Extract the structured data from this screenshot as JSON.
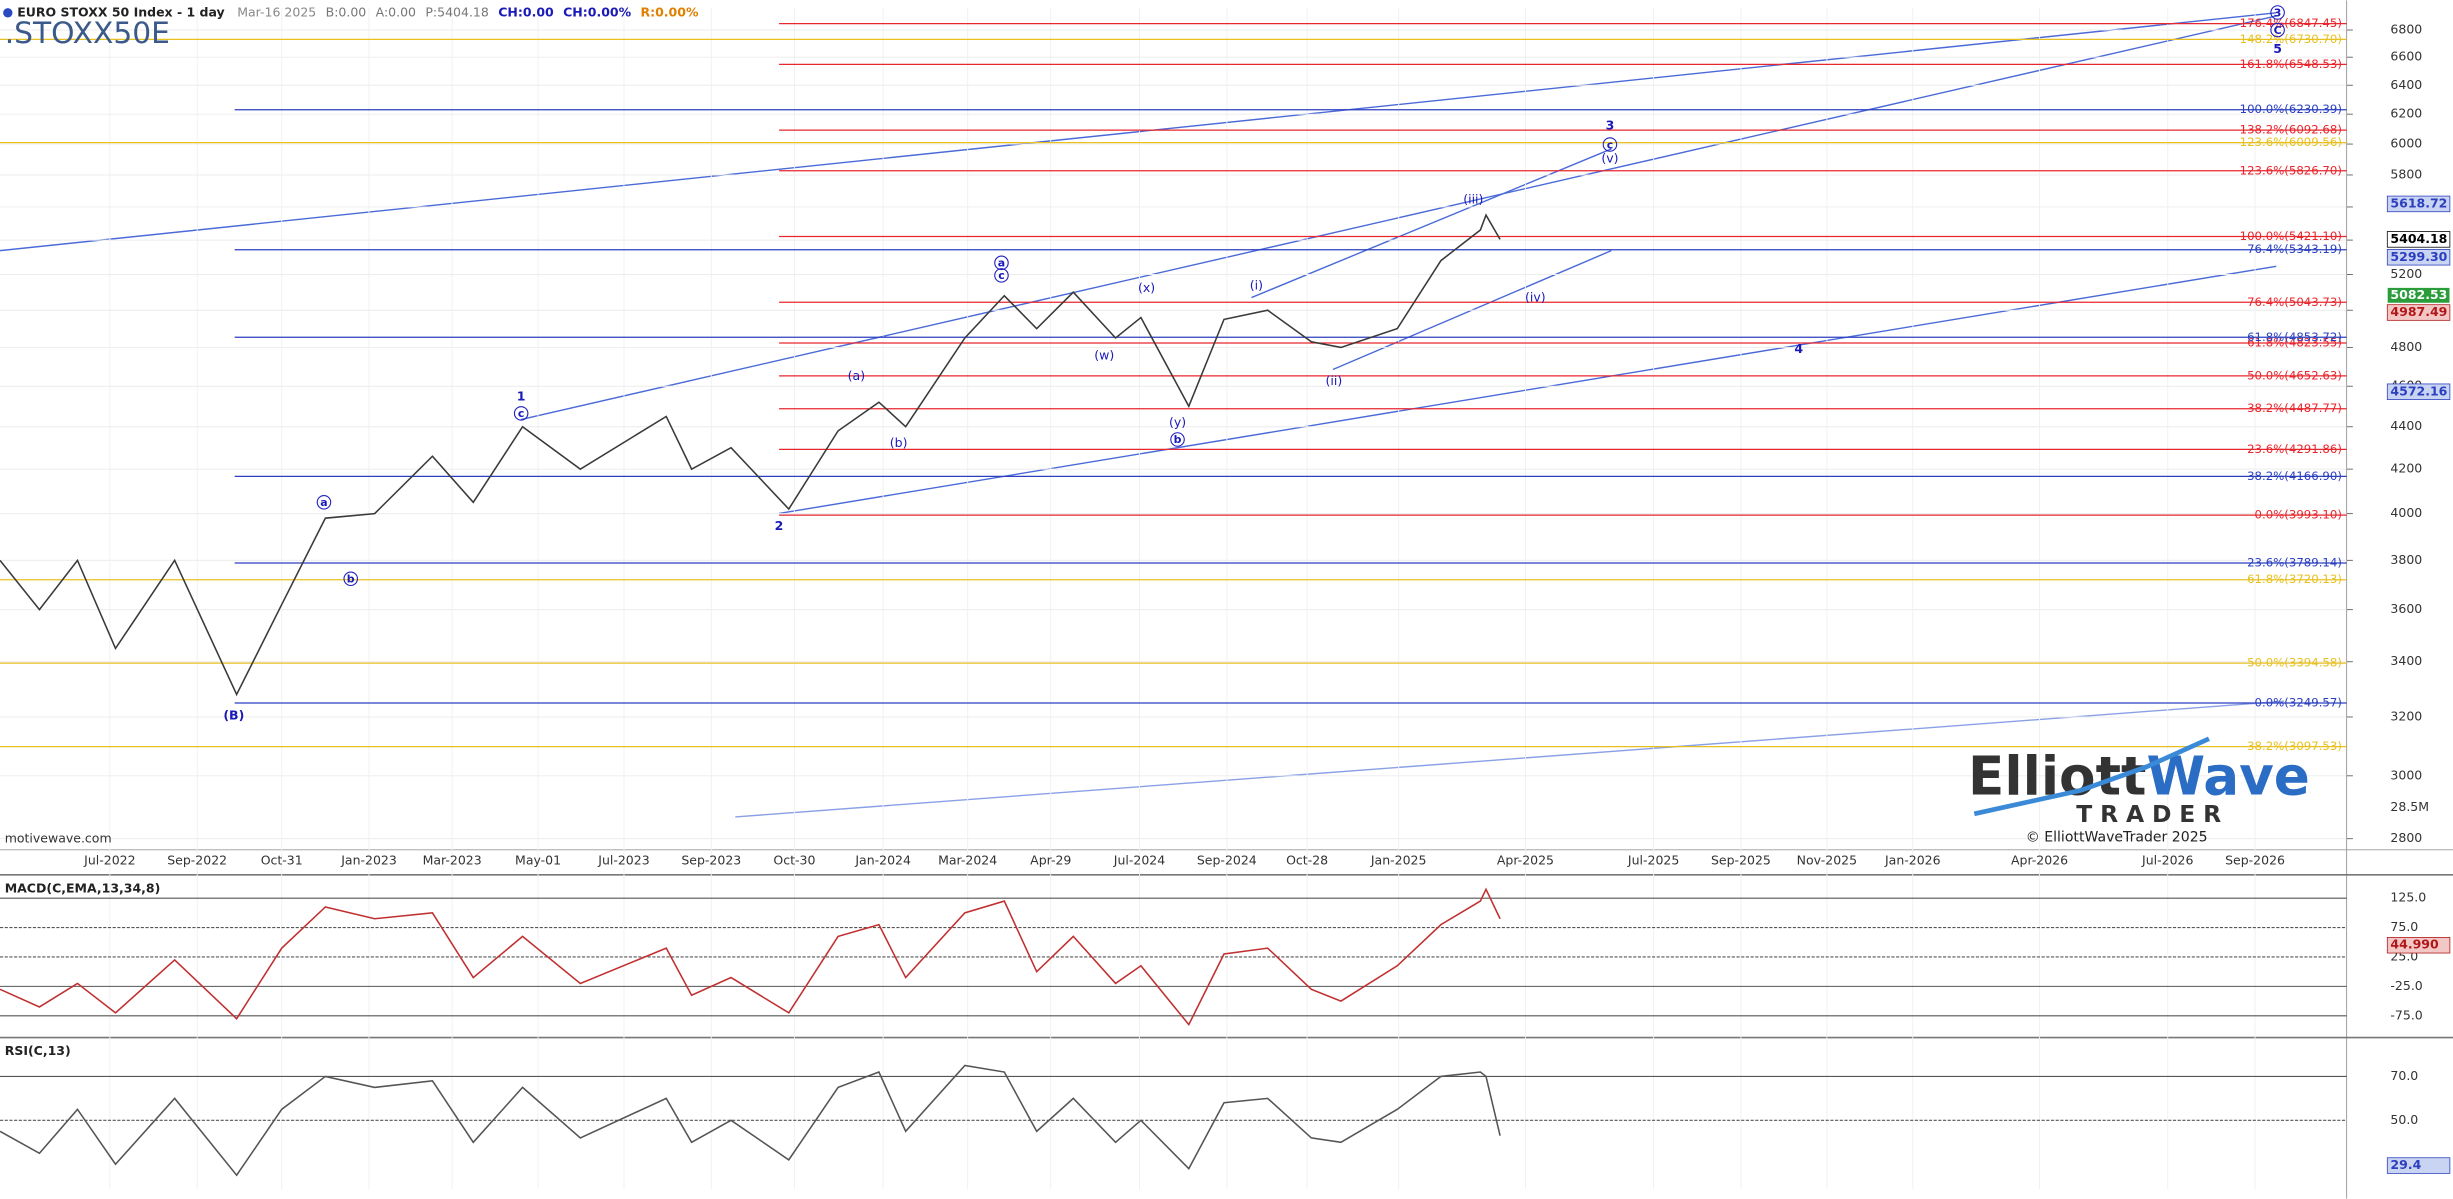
{
  "chart_data": [
    {
      "type": "line",
      "title": "EURO STOXX 50 Index - 1 day",
      "symbol": ".STOXX50E",
      "header_items": [
        "Mar-16 2025",
        "B:0.00",
        "A:0.00",
        "P:5404.18",
        "CH:0.00",
        "CH:0.00%",
        "R:0.00%"
      ],
      "log_scale": true,
      "grid": true,
      "xlim": [
        "2022-04-14",
        "2026-11-05"
      ],
      "xticks": [
        {
          "value": "2022-07-01",
          "label": "Jul-2022"
        },
        {
          "value": "2022-09-01",
          "label": "Sep-2022"
        },
        {
          "value": "2022-10-31",
          "label": "Oct-31"
        },
        {
          "value": "2023-01-01",
          "label": "Jan-2023"
        },
        {
          "value": "2023-03-01",
          "label": "Mar-2023"
        },
        {
          "value": "2023-05-01",
          "label": "May-01"
        },
        {
          "value": "2023-07-01",
          "label": "Jul-2023"
        },
        {
          "value": "2023-09-01",
          "label": "Sep-2023"
        },
        {
          "value": "2023-10-30",
          "label": "Oct-30"
        },
        {
          "value": "2024-01-01",
          "label": "Jan-2024"
        },
        {
          "value": "2024-03-01",
          "label": "Mar-2024"
        },
        {
          "value": "2024-04-29",
          "label": "Apr-29"
        },
        {
          "value": "2024-07-01",
          "label": "Jul-2024"
        },
        {
          "value": "2024-09-01",
          "label": "Sep-2024"
        },
        {
          "value": "2024-10-28",
          "label": "Oct-28"
        },
        {
          "value": "2025-01-01",
          "label": "Jan-2025"
        },
        {
          "value": "2025-04-01",
          "label": "Apr-2025"
        },
        {
          "value": "2025-07-01",
          "label": "Jul-2025"
        },
        {
          "value": "2025-09-01",
          "label": "Sep-2025"
        },
        {
          "value": "2025-11-01",
          "label": "Nov-2025"
        },
        {
          "value": "2026-01-01",
          "label": "Jan-2026"
        },
        {
          "value": "2026-04-01",
          "label": "Apr-2026"
        },
        {
          "value": "2026-07-01",
          "label": "Jul-2026"
        },
        {
          "value": "2026-09-01",
          "label": "Sep-2026"
        }
      ],
      "ylim": [
        2766,
        6965
      ],
      "yticks": [
        2800,
        3000,
        3200,
        3400,
        3600,
        3800,
        4000,
        4200,
        4400,
        4600,
        4800,
        5000,
        5200,
        5400,
        5600,
        5800,
        6000,
        6200,
        6400,
        6600,
        6800
      ],
      "x": [
        "2022-04-14",
        "2022-05-12",
        "2022-06-08",
        "2022-07-05",
        "2022-08-16",
        "2022-09-29",
        "2022-10-31",
        "2022-12-01",
        "2023-01-05",
        "2023-02-15",
        "2023-03-16",
        "2023-04-20",
        "2023-05-31",
        "2023-07-31",
        "2023-08-18",
        "2023-09-15",
        "2023-10-26",
        "2023-11-30",
        "2023-12-29",
        "2024-01-17",
        "2024-02-28",
        "2024-03-27",
        "2024-04-19",
        "2024-05-15",
        "2024-06-14",
        "2024-07-02",
        "2024-08-05",
        "2024-08-30",
        "2024-09-30",
        "2024-10-31",
        "2024-11-21",
        "2024-12-31",
        "2025-01-31",
        "2025-02-28",
        "2025-03-04",
        "2025-03-14"
      ],
      "series": [
        {
          "color": "#3a3a3a",
          "values": [
            3800,
            3600,
            3800,
            3450,
            3800,
            3280,
            3620,
            3980,
            4000,
            4260,
            4050,
            4400,
            4200,
            4450,
            4200,
            4300,
            4020,
            4380,
            4520,
            4400,
            4850,
            5080,
            4900,
            5100,
            4850,
            4960,
            4500,
            4950,
            5000,
            4830,
            4800,
            4900,
            5280,
            5460,
            5550,
            5404
          ]
        }
      ],
      "fib_sets": [
        {
          "color": "#e8262d",
          "levels": [
            {
              "label": "176.4%(6847.45)",
              "value": 6847.45
            },
            {
              "label": "161.8%(6548.53)",
              "value": 6548.53
            },
            {
              "label": "138.2%(6092.68)",
              "value": 6092.68
            },
            {
              "label": "123.6%(5826.70)",
              "value": 5826.7
            },
            {
              "label": "100.0%(5421.10)",
              "value": 5421.1
            },
            {
              "label": "76.4%(5043.73)",
              "value": 5043.73
            },
            {
              "label": "61.8%(4823.55)",
              "value": 4823.55
            },
            {
              "label": "50.0%(4652.63)",
              "value": 4652.63
            },
            {
              "label": "38.2%(4487.77)",
              "value": 4487.77
            },
            {
              "label": "23.6%(4291.86)",
              "value": 4291.86
            },
            {
              "label": "0.0%(3993.10)",
              "value": 3993.1
            }
          ]
        },
        {
          "color": "#2b3fbf",
          "levels": [
            {
              "label": "100.0%(6230.39)",
              "value": 6230.39
            },
            {
              "label": "76.4%(5343.19)",
              "value": 5343.19
            },
            {
              "label": "61.8%(4853.72)",
              "value": 4853.72
            },
            {
              "label": "38.2%(4166.90)",
              "value": 4166.9
            },
            {
              "label": "23.6%(3789.14)",
              "value": 3789.14
            },
            {
              "label": "0.0%(3249.57)",
              "value": 3249.57
            }
          ]
        },
        {
          "color": "#e8c020",
          "levels": [
            {
              "label": "148.2%(6730.70)",
              "value": 6730.7
            },
            {
              "label": "123.6%(6009.56)",
              "value": 6009.56
            },
            {
              "label": "61.8%(3720.13)",
              "value": 3720.13
            },
            {
              "label": "50.0%(3394.58)",
              "value": 3394.58
            },
            {
              "label": "38.2%(3097.53)",
              "value": 3097.53
            }
          ]
        }
      ],
      "price_markers": [
        {
          "value": 5618.72,
          "label": "5618.72",
          "color": "#2b3fbf",
          "background": "#c9d3f2"
        },
        {
          "value": 5404.18,
          "label": "5404.18",
          "color": "#000000",
          "background": "#ffffff"
        },
        {
          "value": 5299.3,
          "label": "5299.30",
          "color": "#2b3fbf",
          "background": "#c9d3f2"
        },
        {
          "value": 5082.53,
          "label": "5082.53",
          "color": "#ffffff",
          "background": "#2a9d3a"
        },
        {
          "value": 4987.49,
          "label": "4987.49",
          "color": "#b01818",
          "background": "#f4c7c7"
        },
        {
          "value": 4572.16,
          "label": "4572.16",
          "color": "#2b3fbf",
          "background": "#c9d3f2"
        }
      ],
      "wave_labels": [
        {
          "text": "(B)",
          "x": "2022-09-27",
          "y": 3207,
          "circled": false
        },
        {
          "text": "a",
          "x": "2022-11-30",
          "y": 4050,
          "circled": true
        },
        {
          "text": "b",
          "x": "2022-12-19",
          "y": 3724,
          "circled": true
        },
        {
          "text": "1",
          "x": "2023-04-19",
          "y": 4551,
          "circled": false
        },
        {
          "text": "c",
          "x": "2023-04-19",
          "y": 4465,
          "circled": true
        },
        {
          "text": "2",
          "x": "2023-10-19",
          "y": 3947,
          "circled": false
        },
        {
          "text": "(a)",
          "x": "2023-12-13",
          "y": 4654,
          "circled": false
        },
        {
          "text": "(b)",
          "x": "2024-01-12",
          "y": 4323,
          "circled": false
        },
        {
          "text": "a",
          "x": "2024-03-25",
          "y": 5267,
          "circled": true
        },
        {
          "text": "c",
          "x": "2024-03-25",
          "y": 5195,
          "circled": true
        },
        {
          "text": "(w)",
          "x": "2024-06-06",
          "y": 4759,
          "circled": false
        },
        {
          "text": "(x)",
          "x": "2024-07-06",
          "y": 5124,
          "circled": false
        },
        {
          "text": "(y)",
          "x": "2024-07-28",
          "y": 4421,
          "circled": false
        },
        {
          "text": "b",
          "x": "2024-07-28",
          "y": 4339,
          "circled": true
        },
        {
          "text": "(i)",
          "x": "2024-09-22",
          "y": 5140,
          "circled": false
        },
        {
          "text": "(ii)",
          "x": "2024-11-16",
          "y": 4629,
          "circled": false
        },
        {
          "text": "(iii)",
          "x": "2025-02-23",
          "y": 5648,
          "circled": false
        },
        {
          "text": "(iv)",
          "x": "2025-04-08",
          "y": 5071,
          "circled": false
        },
        {
          "text": "3",
          "x": "2025-05-31",
          "y": 6126,
          "circled": false
        },
        {
          "text": "c",
          "x": "2025-05-31",
          "y": 5997,
          "circled": true
        },
        {
          "text": "(v)",
          "x": "2025-05-31",
          "y": 5908,
          "circled": false
        },
        {
          "text": "4",
          "x": "2025-10-12",
          "y": 4792,
          "circled": false
        },
        {
          "text": "3",
          "x": "2026-09-17",
          "y": 6932,
          "circled": true
        },
        {
          "text": "C",
          "x": "2026-09-17",
          "y": 6800,
          "circled": true
        },
        {
          "text": "5",
          "x": "2026-09-17",
          "y": 6660,
          "circled": false
        }
      ],
      "volume_label": "28.5M"
    },
    {
      "type": "line",
      "title": "MACD(C,EMA,13,34,8)",
      "xlim": [
        "2022-04-14",
        "2026-11-05"
      ],
      "ylim": [
        -104,
        162
      ],
      "yticks": [
        {
          "value": 125,
          "label": "125.0"
        },
        {
          "value": 75,
          "label": "75.0"
        },
        {
          "value": 25,
          "label": "25.0"
        },
        {
          "value": -25,
          "label": "-25.0"
        },
        {
          "value": -75,
          "label": "-75.0"
        }
      ],
      "x": [
        "2022-04-14",
        "2022-05-12",
        "2022-06-08",
        "2022-07-05",
        "2022-08-16",
        "2022-09-29",
        "2022-10-31",
        "2022-12-01",
        "2023-01-05",
        "2023-02-15",
        "2023-03-16",
        "2023-04-20",
        "2023-05-31",
        "2023-07-31",
        "2023-08-18",
        "2023-09-15",
        "2023-10-26",
        "2023-11-30",
        "2023-12-29",
        "2024-01-17",
        "2024-02-28",
        "2024-03-27",
        "2024-04-19",
        "2024-05-15",
        "2024-06-14",
        "2024-07-02",
        "2024-08-05",
        "2024-08-30",
        "2024-09-30",
        "2024-10-31",
        "2024-11-21",
        "2024-12-31",
        "2025-01-31",
        "2025-02-28",
        "2025-03-04",
        "2025-03-14"
      ],
      "series": [
        {
          "color": "#c03030",
          "values": [
            -30,
            -60,
            -20,
            -70,
            20,
            -80,
            40,
            110,
            90,
            100,
            -10,
            60,
            -20,
            40,
            -40,
            -10,
            -70,
            60,
            80,
            -10,
            100,
            120,
            0,
            60,
            -20,
            10,
            -90,
            30,
            40,
            -30,
            -50,
            10,
            80,
            120,
            140,
            90
          ]
        }
      ],
      "markers": [
        {
          "value": 44.99,
          "label": "44.990",
          "color": "#b01818",
          "background": "#f4c7c7"
        }
      ]
    },
    {
      "type": "line",
      "title": "RSI(C,13)",
      "xlim": [
        "2022-04-14",
        "2026-11-05"
      ],
      "ylim": [
        18.6,
        87
      ],
      "yticks": [
        {
          "value": 70,
          "label": "70.0"
        },
        {
          "value": 50,
          "label": "50.0"
        }
      ],
      "x": [
        "2022-04-14",
        "2022-05-12",
        "2022-06-08",
        "2022-07-05",
        "2022-08-16",
        "2022-09-29",
        "2022-10-31",
        "2022-12-01",
        "2023-01-05",
        "2023-02-15",
        "2023-03-16",
        "2023-04-20",
        "2023-05-31",
        "2023-07-31",
        "2023-08-18",
        "2023-09-15",
        "2023-10-26",
        "2023-11-30",
        "2023-12-29",
        "2024-01-17",
        "2024-02-28",
        "2024-03-27",
        "2024-04-19",
        "2024-05-15",
        "2024-06-14",
        "2024-07-02",
        "2024-08-05",
        "2024-08-30",
        "2024-09-30",
        "2024-10-31",
        "2024-11-21",
        "2024-12-31",
        "2025-01-31",
        "2025-02-28",
        "2025-03-04",
        "2025-03-14"
      ],
      "series": [
        {
          "color": "#555555",
          "values": [
            45,
            35,
            55,
            30,
            60,
            25,
            55,
            70,
            65,
            68,
            40,
            65,
            42,
            60,
            40,
            50,
            32,
            65,
            72,
            45,
            75,
            72,
            45,
            60,
            40,
            50,
            28,
            58,
            60,
            42,
            40,
            55,
            70,
            72,
            70,
            43
          ]
        }
      ],
      "markers": [
        {
          "value": 29.4,
          "label": "29.4",
          "color": "#2b3fbf",
          "background": "#c9d3f2"
        }
      ]
    }
  ],
  "branding": {
    "logo_a": "Elliott",
    "logo_b": "Wave",
    "logo_sub": "TRADER",
    "copyright": "© ElliottWaveTrader 2025",
    "source": "motivewave.com"
  }
}
